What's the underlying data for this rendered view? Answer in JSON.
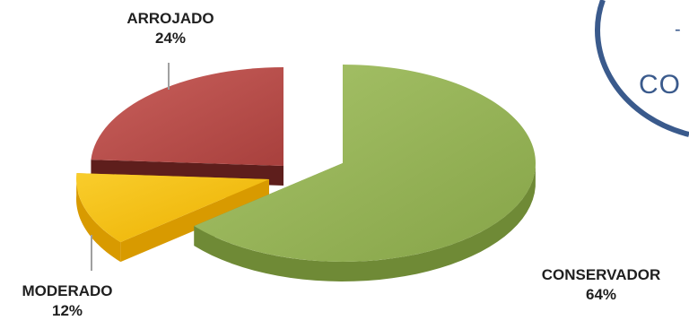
{
  "chart_data": {
    "type": "pie",
    "style": "3d-exploded",
    "title": "",
    "slices": [
      {
        "label": "CONSERVADOR",
        "value": 64,
        "value_label": "64%",
        "color": "#92b054",
        "side_color": "#6f8a36"
      },
      {
        "label": "MODERADO",
        "value": 12,
        "value_label": "12%",
        "color": "#f5bf0c",
        "side_color": "#d89a00"
      },
      {
        "label": "ARROJADO",
        "value": 24,
        "value_label": "24%",
        "color": "#b84a47",
        "side_color": "#5e1e1c"
      }
    ],
    "legend": "none"
  },
  "decoration": {
    "corner_text": "CO",
    "corner_mark": "-",
    "circle_color": "#3a5a8c"
  }
}
